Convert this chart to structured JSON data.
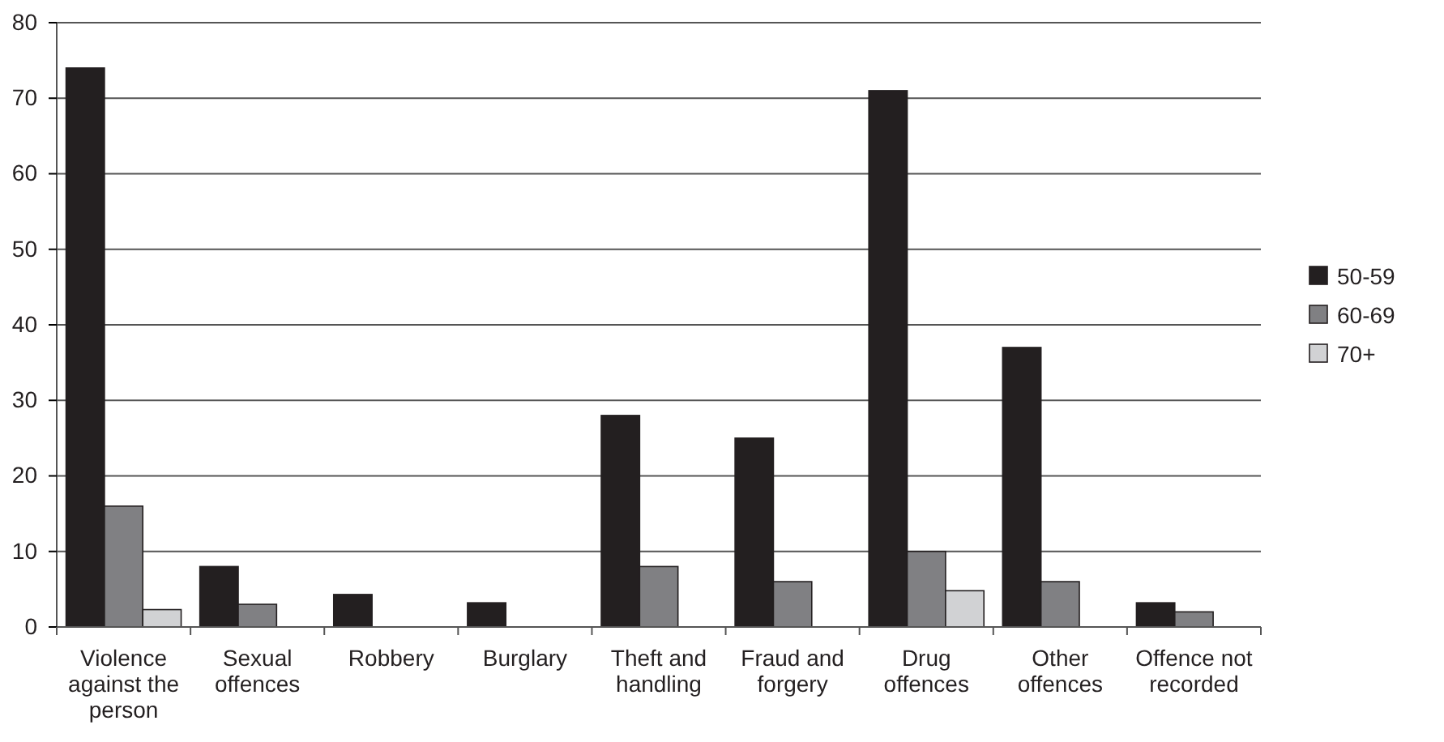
{
  "chart_data": {
    "type": "bar",
    "categories": [
      "Violence against the person",
      "Sexual offences",
      "Robbery",
      "Burglary",
      "Theft and handling",
      "Fraud and forgery",
      "Drug offences",
      "Other offences",
      "Offence not recorded"
    ],
    "series": [
      {
        "name": "50-59",
        "color": "#231f20",
        "values": [
          74,
          8,
          4.3,
          3.2,
          28,
          25,
          71,
          37,
          3.2
        ]
      },
      {
        "name": "60-69",
        "color": "#808083",
        "values": [
          16,
          3,
          null,
          null,
          8,
          6,
          10,
          6,
          2
        ]
      },
      {
        "name": "70+",
        "color": "#d1d2d4",
        "values": [
          2.3,
          null,
          null,
          null,
          null,
          null,
          4.8,
          null,
          null
        ]
      }
    ],
    "ylim": [
      0,
      80
    ],
    "yticks": [
      0,
      10,
      20,
      30,
      40,
      50,
      60,
      70,
      80
    ],
    "grid": "y",
    "legend": "right"
  }
}
